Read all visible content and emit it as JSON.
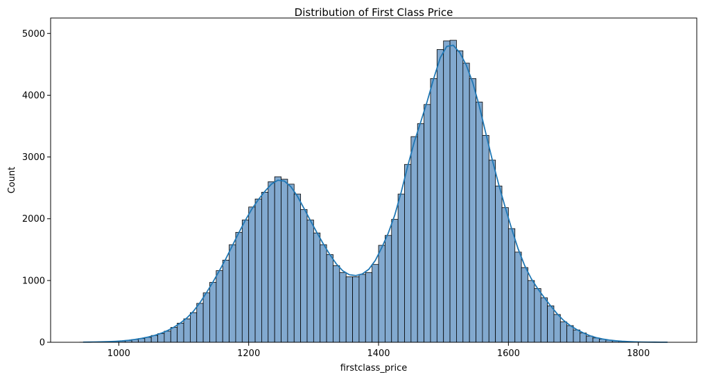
{
  "chart_data": {
    "type": "bar",
    "title": "Distribution of First Class Price",
    "xlabel": "firstclass_price",
    "ylabel": "Count",
    "xlim": [
      895,
      1890
    ],
    "ylim": [
      0,
      5250
    ],
    "xticks": [
      1000,
      1200,
      1400,
      1600,
      1800
    ],
    "yticks": [
      0,
      1000,
      2000,
      3000,
      4000,
      5000
    ],
    "grid": false,
    "kde_line": true,
    "bin_width": 10,
    "bin_starts": [
      940,
      950,
      960,
      970,
      980,
      990,
      1000,
      1010,
      1020,
      1030,
      1040,
      1050,
      1060,
      1070,
      1080,
      1090,
      1100,
      1110,
      1120,
      1130,
      1140,
      1150,
      1160,
      1170,
      1180,
      1190,
      1200,
      1210,
      1220,
      1230,
      1240,
      1250,
      1260,
      1270,
      1280,
      1290,
      1300,
      1310,
      1320,
      1330,
      1340,
      1350,
      1360,
      1370,
      1380,
      1390,
      1400,
      1410,
      1420,
      1430,
      1440,
      1450,
      1460,
      1470,
      1480,
      1490,
      1500,
      1510,
      1520,
      1530,
      1540,
      1550,
      1560,
      1570,
      1580,
      1590,
      1600,
      1610,
      1620,
      1630,
      1640,
      1650,
      1660,
      1670,
      1680,
      1690,
      1700,
      1710,
      1720,
      1730,
      1740,
      1750,
      1760,
      1770,
      1780,
      1790,
      1800,
      1810,
      1820,
      1830,
      1840
    ],
    "values": [
      2,
      3,
      5,
      8,
      10,
      15,
      20,
      30,
      45,
      60,
      80,
      110,
      140,
      180,
      240,
      310,
      380,
      480,
      630,
      800,
      970,
      1160,
      1330,
      1580,
      1780,
      1980,
      2190,
      2320,
      2430,
      2600,
      2680,
      2640,
      2560,
      2400,
      2150,
      1980,
      1770,
      1580,
      1420,
      1240,
      1130,
      1060,
      1060,
      1100,
      1130,
      1260,
      1570,
      1730,
      1990,
      2400,
      2880,
      3330,
      3540,
      3850,
      4270,
      4740,
      4880,
      4890,
      4720,
      4520,
      4270,
      3890,
      3350,
      2950,
      2530,
      2180,
      1840,
      1460,
      1210,
      1000,
      870,
      720,
      590,
      450,
      330,
      270,
      200,
      150,
      100,
      70,
      50,
      35,
      22,
      15,
      10,
      6,
      4,
      3,
      2,
      1,
      1
    ]
  },
  "colors": {
    "bar_fill": "#82a9cf",
    "bar_edge": "#000000",
    "kde_line": "#1f77b4"
  }
}
